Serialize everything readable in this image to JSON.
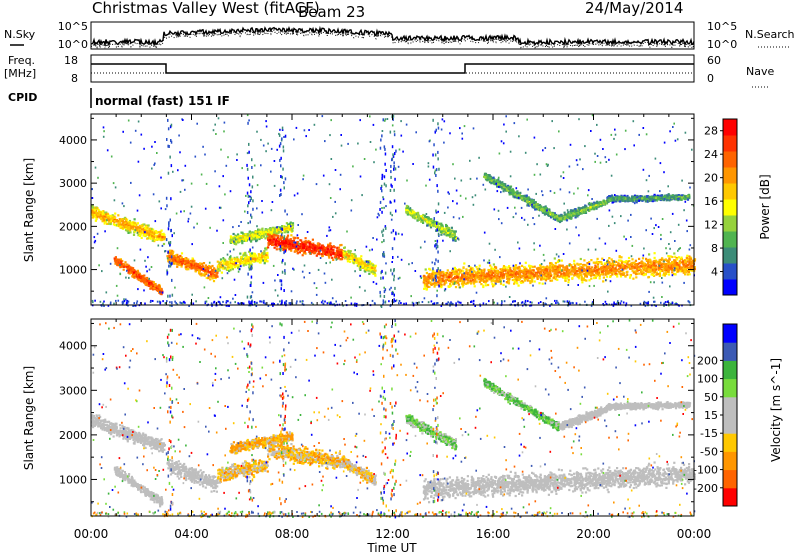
{
  "header": {
    "title": "Christmas Valley West (fitACF)",
    "beam": "Beam 23",
    "date": "24/May/2014"
  },
  "labels": {
    "nsky": "N.Sky",
    "nsearch": "N.Search",
    "freq_line1": "Freq.",
    "freq_line2": "[MHz]",
    "nave": "Nave",
    "cpid": "CPID",
    "mode": "normal (fast) 151 IF"
  },
  "strip_ticks": {
    "noise_left": [
      "10^5",
      "10^0"
    ],
    "noise_right": [
      "10^5",
      "10^0"
    ],
    "freq_left": [
      "18",
      "8"
    ],
    "nave_right": [
      "60",
      "0"
    ]
  },
  "colors": {
    "power_scale": [
      "#0000ff",
      "#2850c8",
      "#3c8c78",
      "#50b450",
      "#96d23c",
      "#ffff00",
      "#ffc800",
      "#ff9600",
      "#ff6400",
      "#ff3200",
      "#ff0000"
    ],
    "velocity_scale": [
      "#ff0000",
      "#ff6400",
      "#ff9600",
      "#ffc800",
      "#bebebe",
      "#bebebe",
      "#78dc3c",
      "#3cb43c",
      "#3c5ab4",
      "#0000ff"
    ],
    "ground_scatter": "#bebebe"
  },
  "chart_data": [
    {
      "type": "heatmap",
      "name": "Power",
      "ylabel": "Slant Range [km]",
      "xlabel": "Time UT",
      "x_ticks": [
        "00:00",
        "04:00",
        "08:00",
        "12:00",
        "16:00",
        "20:00",
        "00:00"
      ],
      "xlim_hours": [
        0,
        24
      ],
      "y_ticks": [
        1000,
        2000,
        3000,
        4000
      ],
      "ylim": [
        180,
        4600
      ],
      "colorbar": {
        "label": "Power [dB]",
        "ticks": [
          4,
          8,
          12,
          16,
          20,
          24,
          28
        ],
        "range": [
          0,
          30
        ]
      },
      "bands": [
        {
          "t0": 0.0,
          "t1": 2.9,
          "r0": 2350,
          "r1": 1750,
          "w": 320,
          "level": 16
        },
        {
          "t0": 0.9,
          "t1": 2.8,
          "r0": 1250,
          "r1": 500,
          "w": 220,
          "level": 22
        },
        {
          "t0": 3.0,
          "t1": 5.0,
          "r0": 1350,
          "r1": 900,
          "w": 360,
          "level": 20
        },
        {
          "t0": 5.0,
          "t1": 7.0,
          "r0": 1100,
          "r1": 1350,
          "w": 360,
          "level": 14
        },
        {
          "t0": 5.5,
          "t1": 8.0,
          "r0": 1700,
          "r1": 2000,
          "w": 250,
          "level": 12
        },
        {
          "t0": 7.0,
          "t1": 10.0,
          "r0": 1700,
          "r1": 1400,
          "w": 380,
          "level": 24
        },
        {
          "t0": 10.0,
          "t1": 11.3,
          "r0": 1400,
          "r1": 1000,
          "w": 320,
          "level": 14
        },
        {
          "t0": 12.5,
          "t1": 14.5,
          "r0": 2400,
          "r1": 1800,
          "w": 250,
          "level": 10
        },
        {
          "t0": 13.2,
          "t1": 24.0,
          "r0": 800,
          "r1": 1150,
          "w": 520,
          "level": 18
        },
        {
          "t0": 15.6,
          "t1": 18.6,
          "r0": 3200,
          "r1": 2200,
          "w": 200,
          "level": 8
        },
        {
          "t0": 18.6,
          "t1": 20.5,
          "r0": 2200,
          "r1": 2600,
          "w": 200,
          "level": 8
        },
        {
          "t0": 20.5,
          "t1": 23.8,
          "r0": 2650,
          "r1": 2700,
          "w": 150,
          "level": 6
        }
      ]
    },
    {
      "type": "heatmap",
      "name": "Velocity",
      "ylabel": "Slant Range [km]",
      "xlabel": "Time UT",
      "x_ticks": [
        "00:00",
        "04:00",
        "08:00",
        "12:00",
        "16:00",
        "20:00",
        "00:00"
      ],
      "xlim_hours": [
        0,
        24
      ],
      "y_ticks": [
        1000,
        2000,
        3000,
        4000
      ],
      "ylim": [
        180,
        4600
      ],
      "colorbar": {
        "label": "Velocity [m s^-1]",
        "ticks": [
          -200,
          -100,
          -50,
          -15,
          15,
          50,
          100,
          200
        ],
        "range": [
          -250,
          250
        ]
      },
      "bands": [
        {
          "t0": 0.0,
          "t1": 2.9,
          "r0": 2350,
          "r1": 1750,
          "w": 320,
          "level": 0
        },
        {
          "t0": 0.9,
          "t1": 2.8,
          "r0": 1250,
          "r1": 500,
          "w": 220,
          "level": 0
        },
        {
          "t0": 3.0,
          "t1": 5.0,
          "r0": 1350,
          "r1": 900,
          "w": 360,
          "level": 0
        },
        {
          "t0": 5.0,
          "t1": 7.0,
          "r0": 1100,
          "r1": 1350,
          "w": 360,
          "level": -40
        },
        {
          "t0": 5.5,
          "t1": 8.0,
          "r0": 1700,
          "r1": 2000,
          "w": 250,
          "level": -60
        },
        {
          "t0": 7.0,
          "t1": 10.0,
          "r0": 1700,
          "r1": 1400,
          "w": 380,
          "level": -45
        },
        {
          "t0": 10.0,
          "t1": 11.3,
          "r0": 1400,
          "r1": 1000,
          "w": 320,
          "level": -30
        },
        {
          "t0": 12.5,
          "t1": 14.5,
          "r0": 2400,
          "r1": 1800,
          "w": 250,
          "level": 40
        },
        {
          "t0": 13.2,
          "t1": 24.0,
          "r0": 800,
          "r1": 1150,
          "w": 520,
          "level": 0
        },
        {
          "t0": 15.6,
          "t1": 18.6,
          "r0": 3200,
          "r1": 2200,
          "w": 200,
          "level": 60
        },
        {
          "t0": 18.6,
          "t1": 20.5,
          "r0": 2200,
          "r1": 2600,
          "w": 200,
          "level": 0
        },
        {
          "t0": 20.5,
          "t1": 23.8,
          "r0": 2650,
          "r1": 2700,
          "w": 150,
          "level": 0
        }
      ]
    }
  ]
}
